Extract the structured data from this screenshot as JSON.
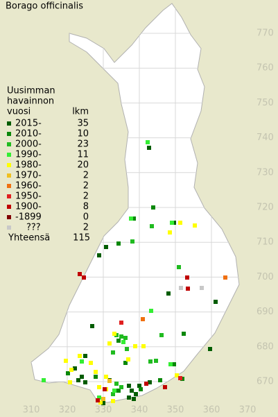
{
  "title": "Borago officinalis",
  "legend": {
    "heading": [
      "Uusimman",
      "havainnon",
      "vuosi"
    ],
    "count_heading": "lkm",
    "rows": [
      {
        "label": "2015-",
        "count": 35,
        "color": "#005c00"
      },
      {
        "label": "2010-",
        "count": 10,
        "color": "#0a870a"
      },
      {
        "label": "2000-",
        "count": 23,
        "color": "#20bb20"
      },
      {
        "label": "1990-",
        "count": 11,
        "color": "#33ee33"
      },
      {
        "label": "1980-",
        "count": 20,
        "color": "#ffff00"
      },
      {
        "label": "1970-",
        "count": 2,
        "color": "#f0c020"
      },
      {
        "label": "1960-",
        "count": 2,
        "color": "#f07010"
      },
      {
        "label": "1950-",
        "count": 2,
        "color": "#e02020"
      },
      {
        "label": "1900-",
        "count": 8,
        "color": "#c00000"
      },
      {
        "label": "-1899",
        "count": 0,
        "color": "#800000"
      },
      {
        "label": "???",
        "count": 2,
        "color": "#c8c8c8"
      }
    ],
    "total_label": "Yhteensä",
    "total": 115
  },
  "grid": {
    "x_labels": [
      310,
      320,
      330,
      340,
      350,
      360,
      370
    ],
    "y_labels": [
      670,
      680,
      690,
      700,
      710,
      720,
      730,
      740,
      750,
      760,
      770
    ]
  }
}
